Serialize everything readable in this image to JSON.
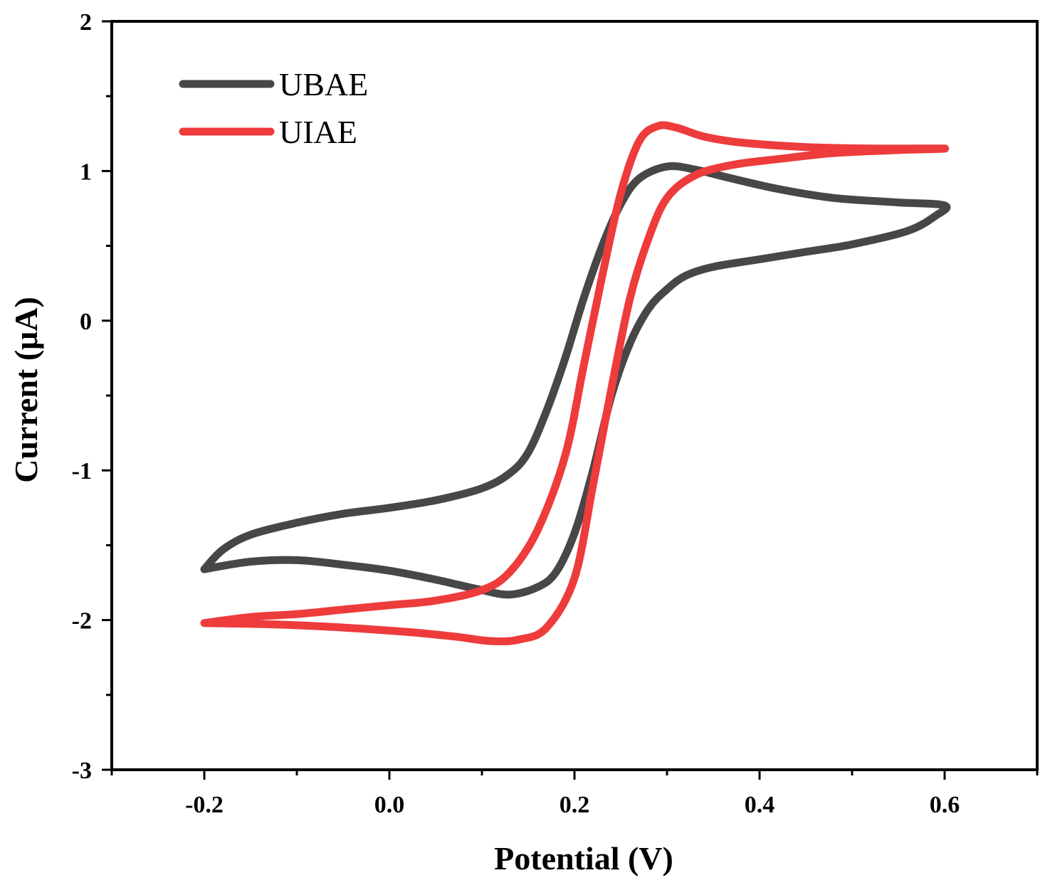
{
  "chart_data": {
    "type": "line",
    "title": "",
    "xlabel": "Potential (V)",
    "ylabel": "Current (μA)",
    "xlim": [
      -0.3,
      0.7
    ],
    "ylim": [
      -3,
      2
    ],
    "xticks": [
      -0.2,
      0.0,
      0.2,
      0.4,
      0.6
    ],
    "xtick_labels": [
      "-0.2",
      "0.0",
      "0.2",
      "0.4",
      "0.6"
    ],
    "yticks": [
      2,
      1,
      0,
      -1,
      -2,
      -3
    ],
    "ytick_labels": [
      "2",
      "1",
      "0",
      "-1",
      "-2",
      "-3"
    ],
    "grid": false,
    "legend_position": "top-left",
    "series": [
      {
        "name": "UBAE",
        "color": "#474747",
        "points": [
          [
            -0.2,
            -1.66
          ],
          [
            -0.18,
            -1.53
          ],
          [
            -0.15,
            -1.43
          ],
          [
            -0.1,
            -1.35
          ],
          [
            -0.05,
            -1.29
          ],
          [
            0.0,
            -1.25
          ],
          [
            0.05,
            -1.2
          ],
          [
            0.1,
            -1.12
          ],
          [
            0.13,
            -1.02
          ],
          [
            0.15,
            -0.88
          ],
          [
            0.17,
            -0.6
          ],
          [
            0.19,
            -0.25
          ],
          [
            0.21,
            0.15
          ],
          [
            0.23,
            0.5
          ],
          [
            0.25,
            0.78
          ],
          [
            0.27,
            0.95
          ],
          [
            0.3,
            1.03
          ],
          [
            0.33,
            1.01
          ],
          [
            0.37,
            0.95
          ],
          [
            0.42,
            0.88
          ],
          [
            0.48,
            0.82
          ],
          [
            0.55,
            0.79
          ],
          [
            0.6,
            0.77
          ],
          [
            0.59,
            0.7
          ],
          [
            0.56,
            0.6
          ],
          [
            0.5,
            0.51
          ],
          [
            0.45,
            0.46
          ],
          [
            0.4,
            0.41
          ],
          [
            0.35,
            0.36
          ],
          [
            0.32,
            0.3
          ],
          [
            0.3,
            0.21
          ],
          [
            0.28,
            0.08
          ],
          [
            0.26,
            -0.15
          ],
          [
            0.24,
            -0.5
          ],
          [
            0.22,
            -1.0
          ],
          [
            0.2,
            -1.42
          ],
          [
            0.18,
            -1.68
          ],
          [
            0.16,
            -1.78
          ],
          [
            0.13,
            -1.83
          ],
          [
            0.1,
            -1.8
          ],
          [
            0.05,
            -1.73
          ],
          [
            0.0,
            -1.67
          ],
          [
            -0.05,
            -1.63
          ],
          [
            -0.1,
            -1.6
          ],
          [
            -0.15,
            -1.61
          ],
          [
            -0.2,
            -1.66
          ]
        ]
      },
      {
        "name": "UIAE",
        "color": "#ee3b3b",
        "points": [
          [
            -0.2,
            -2.02
          ],
          [
            -0.15,
            -1.98
          ],
          [
            -0.1,
            -1.96
          ],
          [
            -0.05,
            -1.93
          ],
          [
            0.0,
            -1.9
          ],
          [
            0.05,
            -1.87
          ],
          [
            0.1,
            -1.8
          ],
          [
            0.13,
            -1.68
          ],
          [
            0.16,
            -1.4
          ],
          [
            0.19,
            -0.9
          ],
          [
            0.21,
            -0.3
          ],
          [
            0.23,
            0.3
          ],
          [
            0.25,
            0.85
          ],
          [
            0.27,
            1.2
          ],
          [
            0.29,
            1.3
          ],
          [
            0.31,
            1.29
          ],
          [
            0.34,
            1.23
          ],
          [
            0.38,
            1.19
          ],
          [
            0.45,
            1.16
          ],
          [
            0.52,
            1.15
          ],
          [
            0.6,
            1.15
          ],
          [
            0.55,
            1.14
          ],
          [
            0.48,
            1.12
          ],
          [
            0.42,
            1.08
          ],
          [
            0.37,
            1.04
          ],
          [
            0.33,
            0.97
          ],
          [
            0.3,
            0.82
          ],
          [
            0.28,
            0.55
          ],
          [
            0.26,
            0.15
          ],
          [
            0.24,
            -0.45
          ],
          [
            0.22,
            -1.1
          ],
          [
            0.2,
            -1.72
          ],
          [
            0.17,
            -2.05
          ],
          [
            0.14,
            -2.13
          ],
          [
            0.11,
            -2.14
          ],
          [
            0.07,
            -2.11
          ],
          [
            0.02,
            -2.08
          ],
          [
            -0.05,
            -2.05
          ],
          [
            -0.12,
            -2.03
          ],
          [
            -0.2,
            -2.02
          ]
        ]
      }
    ]
  }
}
